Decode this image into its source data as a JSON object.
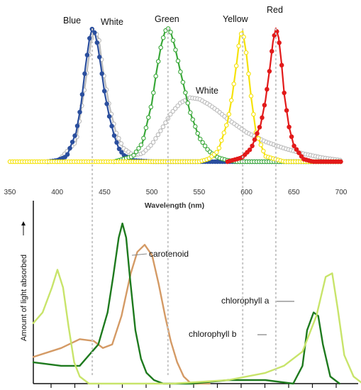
{
  "chart_data": [
    {
      "type": "line",
      "title": "",
      "xlabel": "Wavelength (nm)",
      "ylabel": "",
      "xlim": [
        350,
        700
      ],
      "x_ticks": [
        350,
        400,
        450,
        500,
        550,
        600,
        650,
        700
      ],
      "grid": false,
      "series": [
        {
          "name": "Blue",
          "color": "#2b4f9e",
          "marker": "filled-circle",
          "x": [
            390,
            400,
            410,
            420,
            425,
            430,
            434,
            437,
            440,
            443,
            446,
            450,
            455,
            460,
            465,
            470,
            480,
            500,
            550,
            600,
            650,
            700
          ],
          "y": [
            0.0,
            0.01,
            0.04,
            0.22,
            0.42,
            0.72,
            0.92,
            1.0,
            0.96,
            0.86,
            0.72,
            0.52,
            0.34,
            0.2,
            0.1,
            0.05,
            0.01,
            0.0,
            0.0,
            0.0,
            0.0,
            0.0
          ]
        },
        {
          "name": "White",
          "color": "#bbbbbb",
          "marker": "open-circle",
          "x": [
            400,
            420,
            430,
            436,
            440,
            444,
            448,
            455,
            462,
            470,
            480,
            490,
            500,
            510,
            520,
            530,
            540,
            550,
            560,
            570,
            580,
            590,
            600,
            620,
            640,
            660,
            680,
            700
          ],
          "y": [
            0.0,
            0.15,
            0.6,
            0.92,
            0.98,
            0.92,
            0.7,
            0.42,
            0.22,
            0.1,
            0.05,
            0.06,
            0.13,
            0.24,
            0.36,
            0.44,
            0.48,
            0.47,
            0.43,
            0.38,
            0.32,
            0.27,
            0.22,
            0.15,
            0.1,
            0.06,
            0.03,
            0.01
          ]
        },
        {
          "name": "Green",
          "color": "#3aa83a",
          "marker": "open-circle",
          "x": [
            460,
            480,
            490,
            500,
            505,
            510,
            514,
            517,
            520,
            524,
            530,
            540,
            550,
            560,
            570,
            580,
            590,
            600,
            650,
            700
          ],
          "y": [
            0.0,
            0.04,
            0.14,
            0.44,
            0.68,
            0.88,
            0.98,
            1.0,
            0.97,
            0.87,
            0.68,
            0.38,
            0.18,
            0.08,
            0.03,
            0.01,
            0.0,
            0.0,
            0.0,
            0.0
          ]
        },
        {
          "name": "Yellow",
          "color": "#f5e20a",
          "marker": "open-circle",
          "x": [
            350,
            400,
            450,
            500,
            550,
            560,
            570,
            580,
            585,
            590,
            593,
            596,
            600,
            605,
            610,
            620,
            640,
            700
          ],
          "y": [
            0.0,
            0.0,
            0.0,
            0.0,
            0.0,
            0.02,
            0.08,
            0.3,
            0.5,
            0.76,
            0.94,
            0.98,
            0.8,
            0.48,
            0.22,
            0.04,
            0.0,
            0.0
          ]
        },
        {
          "name": "Red",
          "color": "#e21a1a",
          "marker": "filled-circle",
          "x": [
            580,
            595,
            605,
            615,
            620,
            625,
            628,
            631,
            634,
            637,
            640,
            645,
            650,
            660,
            670,
            700
          ],
          "y": [
            0.0,
            0.03,
            0.1,
            0.28,
            0.46,
            0.72,
            0.9,
            1.0,
            0.93,
            0.74,
            0.5,
            0.26,
            0.12,
            0.02,
            0.0,
            0.0
          ]
        }
      ],
      "annotations": [
        "Blue",
        "White",
        "Green",
        "Yellow",
        "Red",
        "White"
      ]
    },
    {
      "type": "line",
      "title": "",
      "xlabel": "",
      "ylabel": "Amount of light absorbed",
      "xlim": [
        350,
        700
      ],
      "grid": false,
      "series": [
        {
          "name": "carotenoid",
          "color": "#d49a65",
          "x": [
            350,
            380,
            400,
            415,
            425,
            435,
            445,
            455,
            462,
            470,
            478,
            485,
            492,
            498,
            505,
            512,
            520,
            530,
            540
          ],
          "y": [
            0.15,
            0.2,
            0.25,
            0.24,
            0.2,
            0.22,
            0.38,
            0.62,
            0.74,
            0.78,
            0.72,
            0.56,
            0.38,
            0.24,
            0.12,
            0.04,
            0.0,
            0.0,
            0.0
          ]
        },
        {
          "name": "chlorophyll b",
          "color": "#1e7a1e",
          "x": [
            350,
            380,
            400,
            420,
            430,
            436,
            442,
            446,
            450,
            454,
            460,
            466,
            472,
            480,
            490,
            500,
            520,
            560,
            600,
            630,
            640,
            645,
            652,
            657,
            662,
            670,
            680
          ],
          "y": [
            0.12,
            0.1,
            0.1,
            0.22,
            0.4,
            0.6,
            0.82,
            0.9,
            0.82,
            0.6,
            0.3,
            0.14,
            0.06,
            0.02,
            0.0,
            0.0,
            0.0,
            0.02,
            0.02,
            0.0,
            0.1,
            0.3,
            0.4,
            0.38,
            0.22,
            0.04,
            0.0
          ]
        },
        {
          "name": "chlorophyll a",
          "color": "#c8e46a",
          "x": [
            350,
            360,
            370,
            376,
            382,
            388,
            394,
            400,
            410,
            420,
            440,
            460,
            500,
            560,
            600,
            620,
            640,
            655,
            665,
            672,
            678,
            685,
            695,
            705
          ],
          "y": [
            0.34,
            0.4,
            0.54,
            0.64,
            0.54,
            0.32,
            0.12,
            0.04,
            0.0,
            0.0,
            0.0,
            0.0,
            0.0,
            0.02,
            0.06,
            0.1,
            0.18,
            0.38,
            0.6,
            0.62,
            0.42,
            0.16,
            0.04,
            0.0
          ]
        }
      ],
      "annotations": [
        "carotenoid",
        "chlorophyll a",
        "chlorophyll b"
      ]
    }
  ]
}
